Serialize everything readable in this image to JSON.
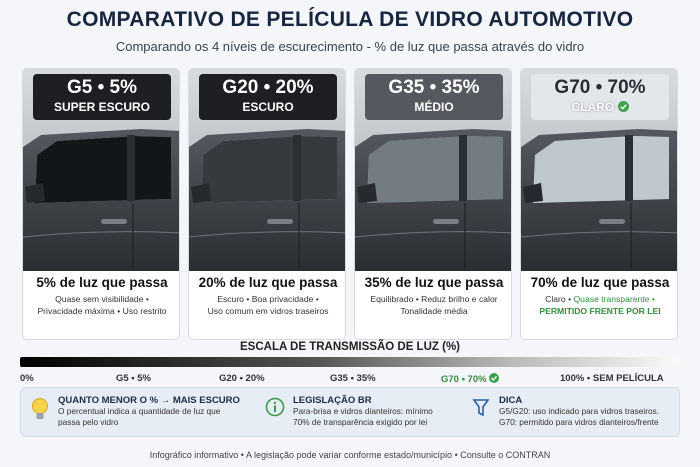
{
  "header": {
    "title": "COMPARATIVO DE PELÍCULA DE VIDRO AUTOMOTIVO",
    "subtitle": "Comparando os 4 níveis de escurecimento - % de luz que passa através do vidro"
  },
  "cards": [
    {
      "code": "G5 • 5%",
      "label": "SUPER ESCURO",
      "headline": "5% de luz que passa",
      "lines": [
        "Quase sem visibilidade •",
        "Privacidade máxima • Uso restrito"
      ]
    },
    {
      "code": "G20 • 20%",
      "label": "ESCURO",
      "headline": "20% de luz que passa",
      "lines": [
        "Escuro • Boa privacidade •",
        "Uso comum em vidros traseiros"
      ]
    },
    {
      "code": "G35 • 35%",
      "label": "MÉDIO",
      "headline": "35% de luz que passa",
      "lines": [
        "Equilibrado • Reduz brilho e calor",
        "Tonalidade média"
      ]
    },
    {
      "code": "G70 • 70%",
      "label": "CLARO",
      "headline": "70% de luz que passa",
      "lines": [
        "Claro •",
        "Quase transparente •",
        "PERMITIDO FRENTE POR LEI"
      ]
    }
  ],
  "scale": {
    "title": "ESCALA DE TRANSMISSÃO DE LUZ (%)",
    "labels": [
      "0%",
      "G5 • 5%",
      "G20 • 20%",
      "G35 • 35%",
      "G70 • 70%",
      "100% • SEM PELÍCULA"
    ]
  },
  "info": [
    {
      "title": "QUANTO MENOR O % → MAIS ESCURO",
      "text": [
        "O percentual indica a quantidade de luz que",
        "passa pelo vidro"
      ]
    },
    {
      "title": "LEGISLAÇÃO BR",
      "text": [
        "Para-brisa e vidros dianteiros: mínimo",
        "70% de transparência exigido por lei"
      ]
    },
    {
      "title": "DICA",
      "text": [
        "G5/G20: uso indicado para vidros traseiros.",
        "G70: permitido para vidros dianteiros/frente"
      ]
    }
  ],
  "footer": "Infográfico informativo • A legislação pode variar conforme estado/município • Consulte o CONTRAN"
}
